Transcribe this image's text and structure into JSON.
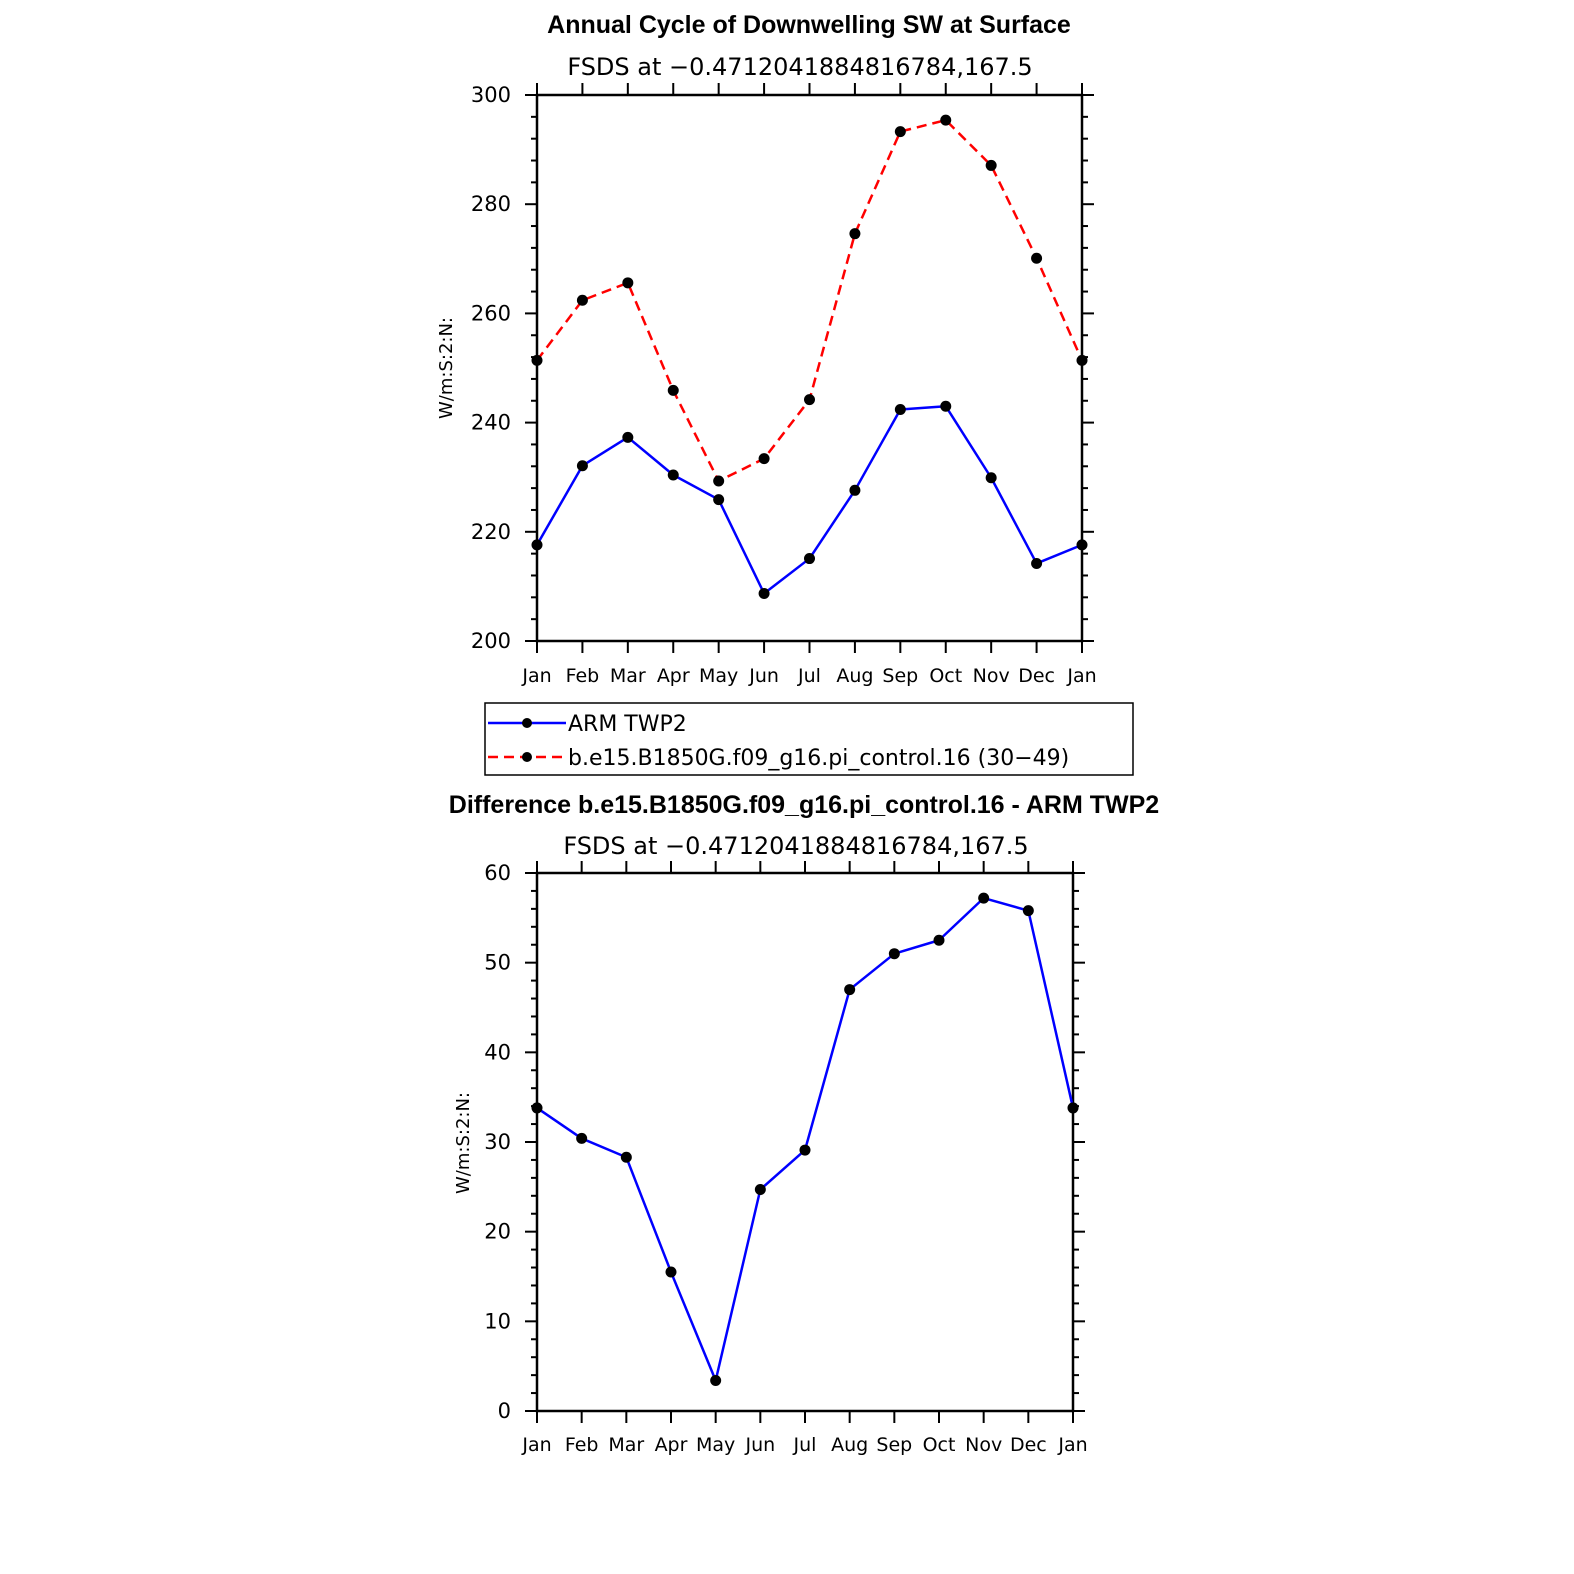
{
  "chart_data": [
    {
      "type": "line",
      "title": "Annual Cycle of Downwelling SW at Surface",
      "subtitle": "FSDS at −0.4712041884816784,167.5",
      "ylabel": "W/m:S:2:N:",
      "xlabel": "",
      "categories": [
        "Jan",
        "Feb",
        "Mar",
        "Apr",
        "May",
        "Jun",
        "Jul",
        "Aug",
        "Sep",
        "Oct",
        "Nov",
        "Dec",
        "Jan"
      ],
      "ylim": [
        200,
        300
      ],
      "yticks": [
        "200",
        "220",
        "240",
        "260",
        "280",
        "300"
      ],
      "series": [
        {
          "name": "ARM TWP2",
          "color": "#0000ff",
          "style": "solid",
          "values": [
            217.6,
            232.1,
            237.3,
            230.4,
            225.9,
            208.7,
            215.1,
            227.6,
            242.4,
            243.0,
            229.9,
            214.2,
            217.6
          ]
        },
        {
          "name": "b.e15.B1850G.f09_g16.pi_control.16 (30−49)",
          "color": "#ff0000",
          "style": "dashed",
          "values": [
            251.4,
            262.4,
            265.6,
            245.9,
            229.3,
            233.4,
            244.2,
            274.6,
            293.3,
            295.4,
            287.1,
            270.1,
            251.4
          ]
        }
      ],
      "legend_position": "below"
    },
    {
      "type": "line",
      "title": "Difference b.e15.B1850G.f09_g16.pi_control.16 - ARM TWP2",
      "subtitle": "FSDS at −0.4712041884816784,167.5",
      "ylabel": "W/m:S:2:N:",
      "xlabel": "",
      "categories": [
        "Jan",
        "Feb",
        "Mar",
        "Apr",
        "May",
        "Jun",
        "Jul",
        "Aug",
        "Sep",
        "Oct",
        "Nov",
        "Dec",
        "Jan"
      ],
      "ylim": [
        0,
        60
      ],
      "yticks": [
        "0",
        "10",
        "20",
        "30",
        "40",
        "50",
        "60"
      ],
      "series": [
        {
          "color": "#0000ff",
          "style": "solid",
          "values": [
            33.8,
            30.4,
            28.3,
            15.5,
            3.4,
            24.7,
            29.1,
            47.0,
            51.0,
            52.5,
            57.2,
            55.8,
            33.8
          ]
        }
      ]
    }
  ]
}
